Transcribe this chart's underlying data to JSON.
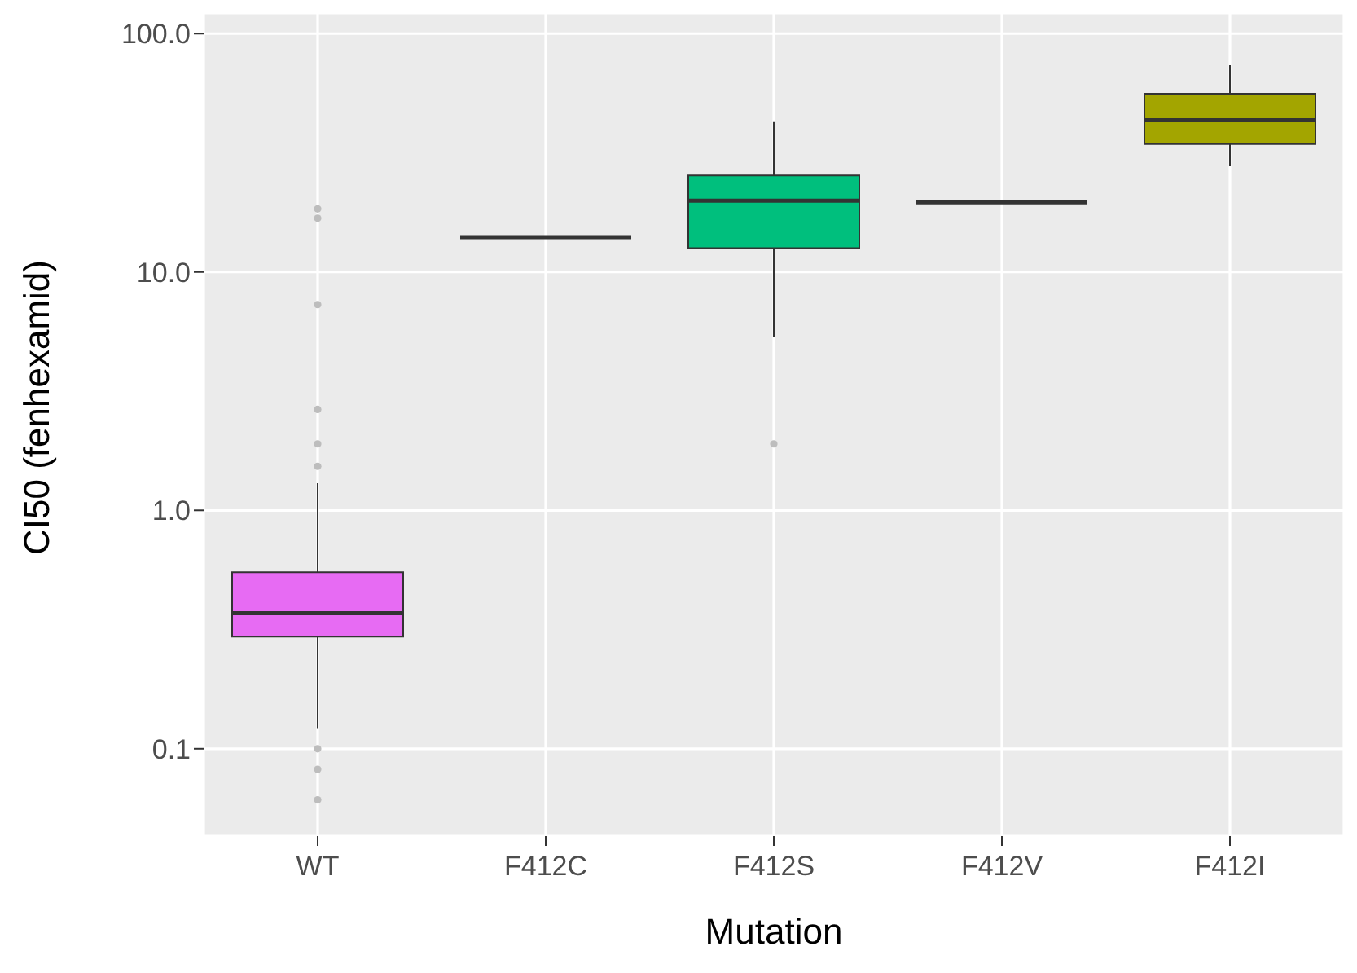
{
  "chart_data": {
    "type": "box",
    "xlabel": "Mutation",
    "ylabel": "CI50 (fenhexamid)",
    "categories": [
      "WT",
      "F412C",
      "F412S",
      "F412V",
      "F412I"
    ],
    "colors": [
      "#e76bf3",
      null,
      "#00bf7d",
      null,
      "#a3a500"
    ],
    "boxes": [
      {
        "low": 0.122,
        "q1": 0.295,
        "median": 0.37,
        "q3": 0.55,
        "high": 1.3,
        "outliers": [
          18.4,
          16.8,
          7.3,
          2.65,
          1.9,
          1.53,
          0.1,
          0.082,
          0.061
        ]
      },
      {
        "low": 14,
        "q1": 14,
        "median": 14,
        "q3": 14,
        "high": 14
      },
      {
        "low": 5.35,
        "q1": 12.6,
        "median": 19.9,
        "q3": 25.4,
        "high": 42.6,
        "outliers": [
          1.9
        ]
      },
      {
        "low": 19.6,
        "q1": 19.6,
        "median": 19.6,
        "q3": 19.6,
        "high": 19.6
      },
      {
        "low": 27.8,
        "q1": 34.4,
        "median": 43.3,
        "q3": 56,
        "high": 73.7
      }
    ],
    "log": "y",
    "ylim": [
      0.043,
      122
    ],
    "yticks": [
      0.1,
      {
        "value": 1,
        "label": "1.0"
      },
      {
        "value": 10,
        "label": "10.0"
      },
      {
        "value": 100,
        "label": "100.0"
      }
    ],
    "grid": true
  }
}
